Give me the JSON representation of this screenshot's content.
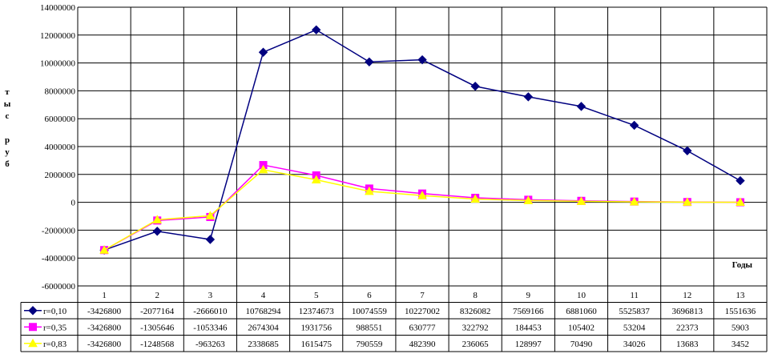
{
  "chart_data": {
    "type": "line",
    "categories": [
      "1",
      "2",
      "3",
      "4",
      "5",
      "6",
      "7",
      "8",
      "9",
      "10",
      "11",
      "12",
      "13"
    ],
    "y_ticks": [
      "14000000",
      "12000000",
      "10000000",
      "8000000",
      "6000000",
      "4000000",
      "2000000",
      "0",
      "-2000000",
      "-4000000",
      "-6000000"
    ],
    "ylim": [
      -6000000,
      14000000
    ],
    "y_step": 2000000,
    "ylabel_chars": [
      "т",
      "ы",
      "с",
      "",
      "р",
      "у",
      "б"
    ],
    "xlabel": "Годы",
    "grid": true,
    "legend": "data-table-left",
    "series": [
      {
        "name": "r=0,10",
        "color": "#000080",
        "marker": "diamond",
        "values": [
          -3426800,
          -2077164,
          -2666010,
          10768294,
          12374673,
          10074559,
          10227002,
          8326082,
          7569166,
          6881060,
          5525837,
          3696813,
          1551636
        ]
      },
      {
        "name": "r=0,35",
        "color": "#FF00FF",
        "marker": "square",
        "values": [
          -3426800,
          -1305646,
          -1053346,
          2674304,
          1931756,
          988551,
          630777,
          322792,
          184453,
          105402,
          53204,
          22373,
          5903
        ]
      },
      {
        "name": "r=0,83",
        "color": "#FFFF00",
        "marker": "triangle",
        "values": [
          -3426800,
          -1248568,
          -963263,
          2338685,
          1615475,
          790559,
          482390,
          236065,
          128997,
          70490,
          34026,
          13683,
          3452
        ]
      }
    ]
  }
}
